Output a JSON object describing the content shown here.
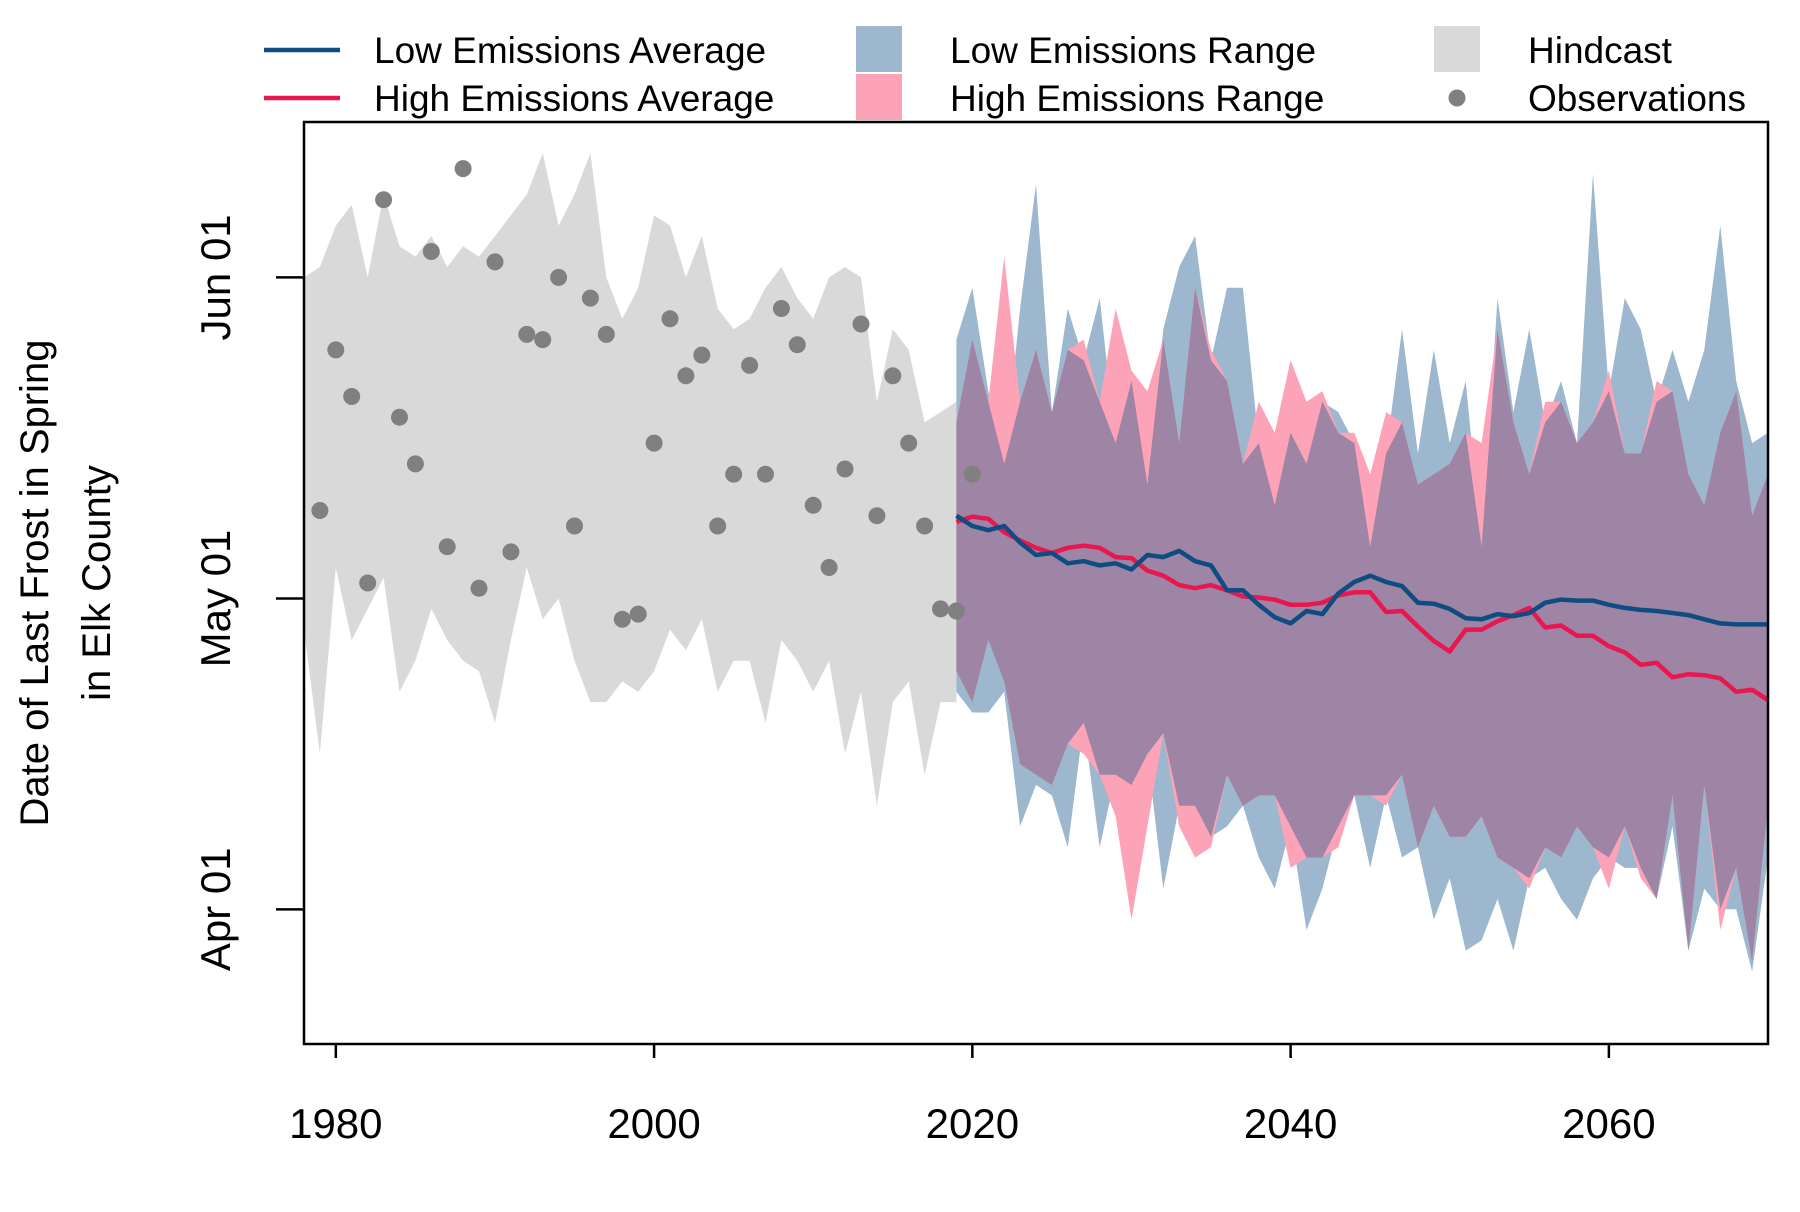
{
  "chart_data": {
    "type": "area",
    "title": "",
    "ylabel_lines": [
      "Date of Last Frost in Spring",
      "in Elk County"
    ],
    "xlabel": "",
    "xlim": [
      1978,
      2070
    ],
    "x_ticks": [
      1980,
      2000,
      2020,
      2040,
      2060
    ],
    "y_ticks": [
      {
        "value": 91,
        "label": "Apr 01"
      },
      {
        "value": 121,
        "label": "May 01"
      },
      {
        "value": 152,
        "label": "Jun 01"
      }
    ],
    "y_units": "day of year",
    "ylim": [
      78,
      167
    ],
    "legend": {
      "placement": "top-outside",
      "entries": [
        {
          "key": "low_avg",
          "label": "Low Emissions Average",
          "kind": "line"
        },
        {
          "key": "high_avg",
          "label": "High Emissions Average",
          "kind": "line"
        },
        {
          "key": "low_range",
          "label": "Low Emissions Range",
          "kind": "area"
        },
        {
          "key": "high_range",
          "label": "High Emissions Range",
          "kind": "area"
        },
        {
          "key": "hindcast",
          "label": "Hindcast",
          "kind": "area"
        },
        {
          "key": "observations",
          "label": "Observations",
          "kind": "point"
        }
      ]
    },
    "colors": {
      "low_avg": "#0f4c81",
      "high_avg": "#e8174f",
      "low_range": "#9db7ce",
      "high_range": "#fca3b8",
      "overlap": "#9e84a5",
      "hindcast": "#d9d9d9",
      "observations": "#808080"
    },
    "series": [
      {
        "key": "hindcast",
        "kind": "range",
        "x": [
          1978,
          1979,
          1980,
          1981,
          1982,
          1983,
          1984,
          1985,
          1986,
          1987,
          1988,
          1989,
          1990,
          1991,
          1992,
          1993,
          1994,
          1995,
          1996,
          1997,
          1998,
          1999,
          2000,
          2001,
          2002,
          2003,
          2004,
          2005,
          2006,
          2007,
          2008,
          2009,
          2010,
          2011,
          2012,
          2013,
          2014,
          2015,
          2016,
          2017,
          2018,
          2019
        ],
        "upper": [
          152,
          153,
          157,
          159,
          152,
          160,
          155,
          154,
          156,
          153,
          155,
          154,
          156,
          158,
          160,
          164,
          157,
          160,
          164,
          152,
          148,
          151,
          158,
          157,
          152,
          156,
          149,
          147,
          148,
          151,
          153,
          150,
          148,
          152,
          153,
          152,
          140,
          147,
          145,
          138,
          139,
          140
        ],
        "lower": [
          118,
          106,
          124,
          117,
          120,
          123,
          112,
          115,
          120,
          117,
          115,
          114,
          109,
          117,
          124,
          119,
          121,
          115,
          111,
          111,
          113,
          112,
          114,
          118,
          116,
          119,
          112,
          115,
          115,
          109,
          117,
          115,
          112,
          115,
          106,
          112,
          101,
          111,
          113,
          104,
          111,
          111
        ]
      },
      {
        "key": "low_range",
        "kind": "range",
        "x": [
          2019,
          2020,
          2021,
          2022,
          2023,
          2024,
          2025,
          2026,
          2027,
          2028,
          2029,
          2030,
          2031,
          2032,
          2033,
          2034,
          2035,
          2036,
          2037,
          2038,
          2039,
          2040,
          2041,
          2042,
          2043,
          2044,
          2045,
          2046,
          2047,
          2048,
          2049,
          2050,
          2051,
          2052,
          2053,
          2054,
          2055,
          2056,
          2057,
          2058,
          2059,
          2060,
          2061,
          2062,
          2063,
          2064,
          2065,
          2066,
          2067,
          2068,
          2069,
          2070
        ],
        "upper": [
          146,
          151,
          141,
          134,
          149,
          161,
          139,
          149,
          144,
          150,
          136,
          142,
          132,
          147,
          153,
          156,
          144,
          151,
          151,
          136,
          130,
          137,
          134,
          140,
          139,
          136,
          126,
          135,
          147,
          135,
          145,
          136,
          142,
          126,
          150,
          139,
          147,
          138,
          142,
          136,
          162,
          141,
          150,
          147,
          140,
          145,
          140,
          145,
          157,
          142,
          136,
          137
        ],
        "lower": [
          112,
          110,
          110,
          112,
          99,
          103,
          102,
          97,
          109,
          97,
          104,
          103,
          106,
          93,
          101,
          101,
          98,
          99,
          101,
          96,
          93,
          99,
          89,
          93,
          99,
          102,
          95,
          102,
          96,
          97,
          90,
          94,
          87,
          88,
          92,
          87,
          94,
          95,
          92,
          90,
          94,
          96,
          95,
          95,
          92,
          99,
          87,
          93,
          91,
          91,
          85,
          96
        ]
      },
      {
        "key": "high_range",
        "kind": "range",
        "x": [
          2019,
          2020,
          2021,
          2022,
          2023,
          2024,
          2025,
          2026,
          2027,
          2028,
          2029,
          2030,
          2031,
          2032,
          2033,
          2034,
          2035,
          2036,
          2037,
          2038,
          2039,
          2040,
          2041,
          2042,
          2043,
          2044,
          2045,
          2046,
          2047,
          2048,
          2049,
          2050,
          2051,
          2052,
          2053,
          2054,
          2055,
          2056,
          2057,
          2058,
          2059,
          2060,
          2061,
          2062,
          2063,
          2064,
          2065,
          2066,
          2067,
          2068,
          2069,
          2070
        ],
        "upper": [
          138,
          146,
          140,
          154,
          140,
          145,
          139,
          145,
          146,
          140,
          149,
          143,
          141,
          146,
          136,
          151,
          145,
          142,
          134,
          140,
          137,
          144,
          140,
          141,
          137,
          137,
          133,
          139,
          138,
          132,
          133,
          134,
          137,
          136,
          147,
          138,
          133,
          140,
          140,
          136,
          138,
          143,
          135,
          135,
          142,
          141,
          133,
          130,
          137,
          141,
          129,
          133
        ],
        "lower": [
          114,
          111,
          117,
          113,
          105,
          104,
          103,
          107,
          106,
          104,
          100,
          90,
          99,
          108,
          99,
          96,
          97,
          104,
          101,
          102,
          102,
          95,
          96,
          96,
          97,
          102,
          102,
          101,
          104,
          97,
          101,
          98,
          98,
          100,
          96,
          95,
          93,
          97,
          96,
          99,
          97,
          93,
          99,
          94,
          92,
          102,
          87,
          103,
          89,
          95,
          86,
          101
        ]
      },
      {
        "key": "low_avg",
        "kind": "line",
        "x": [
          2019,
          2020,
          2021,
          2022,
          2023,
          2024,
          2025,
          2026,
          2027,
          2028,
          2029,
          2030,
          2031,
          2032,
          2033,
          2034,
          2035,
          2036,
          2037,
          2038,
          2039,
          2040,
          2041,
          2042,
          2043,
          2044,
          2045,
          2046,
          2047,
          2048,
          2049,
          2050,
          2051,
          2052,
          2053,
          2054,
          2055,
          2056,
          2057,
          2058,
          2059,
          2060,
          2061,
          2062,
          2063,
          2064,
          2065,
          2066,
          2067,
          2068,
          2069,
          2070
        ],
        "y": [
          129,
          128,
          127.6,
          128,
          126.4,
          125.2,
          125.4,
          124.4,
          124.6,
          124.2,
          124.4,
          123.8,
          125.2,
          125,
          125.6,
          124.6,
          124.2,
          121.8,
          121.8,
          120.4,
          119.2,
          118.6,
          119.8,
          119.5,
          121.5,
          122.6,
          123.2,
          122.6,
          122.2,
          120.6,
          120.5,
          120,
          119.1,
          119,
          119.5,
          119.3,
          119.6,
          120.6,
          120.9,
          120.8,
          120.8,
          120.4,
          120.1,
          119.9,
          119.8,
          119.6,
          119.4,
          119,
          118.6,
          118.5,
          118.5,
          118.5
        ]
      },
      {
        "key": "high_avg",
        "kind": "line",
        "x": [
          2019,
          2020,
          2021,
          2022,
          2023,
          2024,
          2025,
          2026,
          2027,
          2028,
          2029,
          2030,
          2031,
          2032,
          2033,
          2034,
          2035,
          2036,
          2037,
          2038,
          2039,
          2040,
          2041,
          2042,
          2043,
          2044,
          2045,
          2046,
          2047,
          2048,
          2049,
          2050,
          2051,
          2052,
          2053,
          2054,
          2055,
          2056,
          2057,
          2058,
          2059,
          2060,
          2061,
          2062,
          2063,
          2064,
          2065,
          2066,
          2067,
          2068,
          2069,
          2070
        ],
        "y": [
          128.4,
          128.9,
          128.7,
          127.4,
          126.6,
          125.9,
          125.4,
          125.9,
          126.1,
          125.9,
          125,
          124.9,
          123.7,
          123.2,
          122.3,
          122,
          122.3,
          121.8,
          121.2,
          121.1,
          120.9,
          120.4,
          120.4,
          120.6,
          121.3,
          121.6,
          121.6,
          119.7,
          119.8,
          118.3,
          116.9,
          115.9,
          118,
          118,
          118.8,
          119.4,
          120.1,
          118.2,
          118.4,
          117.4,
          117.4,
          116.4,
          115.8,
          114.6,
          114.8,
          113.4,
          113.7,
          113.6,
          113.3,
          112,
          112.2,
          111.2
        ]
      },
      {
        "key": "observations",
        "kind": "scatter",
        "x": [
          1979,
          1980,
          1981,
          1982,
          1983,
          1984,
          1985,
          1986,
          1987,
          1988,
          1989,
          1990,
          1991,
          1992,
          1993,
          1994,
          1995,
          1996,
          1997,
          1998,
          1999,
          2000,
          2001,
          2002,
          2003,
          2004,
          2005,
          2006,
          2007,
          2008,
          2009,
          2010,
          2011,
          2012,
          2013,
          2014,
          2015,
          2016,
          2017,
          2018,
          2019,
          2020
        ],
        "y": [
          129.5,
          145,
          140.5,
          122.5,
          159.5,
          138.5,
          134,
          154.5,
          126,
          162.5,
          122,
          153.5,
          125.5,
          146.5,
          146,
          152,
          128,
          150,
          146.5,
          119,
          119.5,
          136,
          148,
          142.5,
          144.5,
          128,
          133,
          143.5,
          133,
          149,
          145.5,
          130,
          124,
          133.5,
          147.5,
          129,
          142.5,
          136,
          128,
          120,
          119.8,
          133
        ]
      }
    ]
  }
}
